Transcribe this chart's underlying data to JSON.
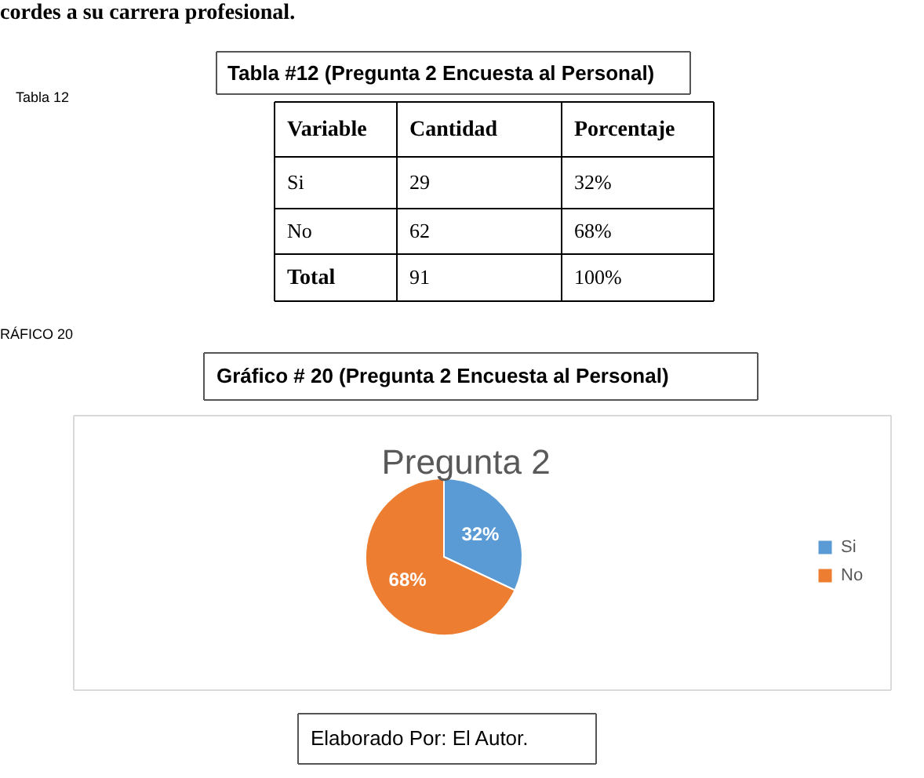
{
  "chart_data": {
    "type": "pie",
    "title": "Pregunta 2",
    "categories": [
      "Si",
      "No"
    ],
    "values": [
      32,
      68
    ],
    "colors": [
      "#5b9bd5",
      "#ed7d31"
    ],
    "value_labels": [
      "32%",
      "68%"
    ],
    "legend": "right",
    "annotations": [
      "cordes a su carrera profesional.",
      "Tabla 12",
      "Tabla #12 (Pregunta 2 Encuesta al Personal)",
      "Variable",
      "Cantidad",
      "Porcentaje",
      " Si",
      "29",
      "32%",
      "No",
      "62",
      "68%",
      "Total",
      "91",
      "100%",
      "RÁFICO 20",
      "Gráfico # 20 (Pregunta 2 Encuesta al Personal)",
      "Elaborado Por: El Autor."
    ]
  }
}
